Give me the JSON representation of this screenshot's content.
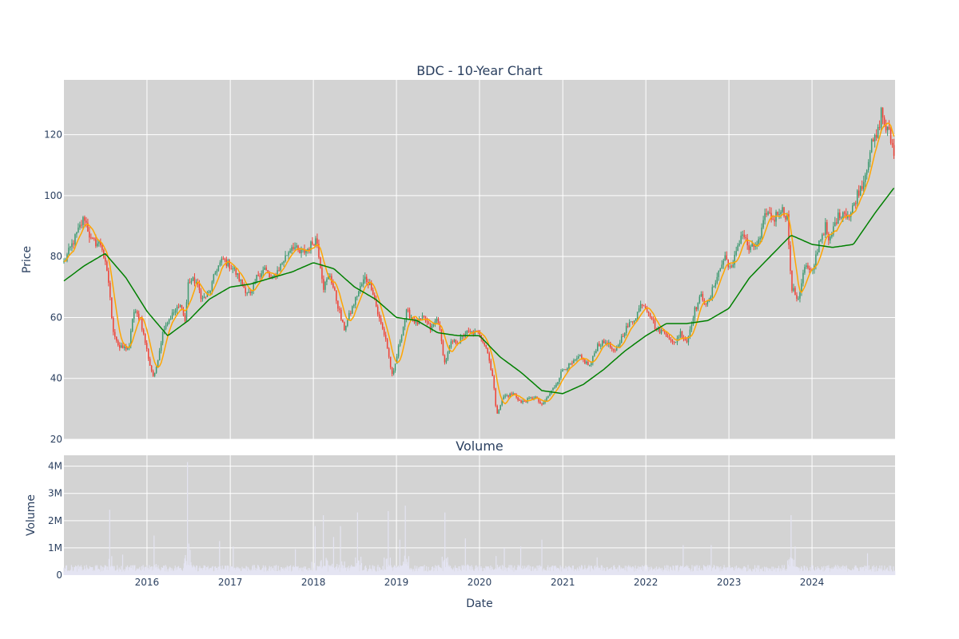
{
  "chart_data": [
    {
      "type": "candlestick",
      "title": "BDC - 10-Year Chart",
      "ylabel": "Price",
      "ylim": [
        20,
        138
      ],
      "yticks": [
        20,
        40,
        60,
        80,
        100,
        120
      ],
      "xlim": [
        "2015-01-01",
        "2024-12-31"
      ],
      "xticks": [
        "2016",
        "2017",
        "2018",
        "2019",
        "2020",
        "2021",
        "2022",
        "2023",
        "2024"
      ],
      "grid": true,
      "colors": {
        "up": "#3d9970",
        "down": "#ef4136",
        "ma_short": "#ffa500",
        "ma_long": "#008000",
        "plot_bg": "#d3d3d3"
      },
      "price_anchors": [
        [
          "2015-01-01",
          78
        ],
        [
          "2015-04-01",
          93
        ],
        [
          "2015-05-01",
          85
        ],
        [
          "2015-06-15",
          84
        ],
        [
          "2015-07-20",
          70
        ],
        [
          "2015-08-01",
          57
        ],
        [
          "2015-09-01",
          50
        ],
        [
          "2015-10-15",
          50
        ],
        [
          "2015-11-01",
          62
        ],
        [
          "2015-12-01",
          60
        ],
        [
          "2016-01-15",
          44
        ],
        [
          "2016-02-01",
          40
        ],
        [
          "2016-03-15",
          57
        ],
        [
          "2016-05-01",
          62
        ],
        [
          "2016-06-01",
          64
        ],
        [
          "2016-06-15",
          58
        ],
        [
          "2016-07-01",
          72
        ],
        [
          "2016-08-01",
          72
        ],
        [
          "2016-09-01",
          66
        ],
        [
          "2016-10-01",
          68
        ],
        [
          "2016-11-01",
          76
        ],
        [
          "2016-12-01",
          79
        ],
        [
          "2017-01-15",
          76
        ],
        [
          "2017-03-01",
          70
        ],
        [
          "2017-04-01",
          67
        ],
        [
          "2017-05-01",
          74
        ],
        [
          "2017-06-01",
          76
        ],
        [
          "2017-07-01",
          72
        ],
        [
          "2017-08-01",
          76
        ],
        [
          "2017-09-01",
          80
        ],
        [
          "2017-10-01",
          84
        ],
        [
          "2017-11-01",
          81
        ],
        [
          "2017-12-01",
          82
        ],
        [
          "2018-01-15",
          86
        ],
        [
          "2018-02-15",
          70
        ],
        [
          "2018-03-15",
          74
        ],
        [
          "2018-04-15",
          65
        ],
        [
          "2018-05-15",
          56
        ],
        [
          "2018-06-15",
          62
        ],
        [
          "2018-07-15",
          68
        ],
        [
          "2018-08-15",
          73
        ],
        [
          "2018-09-15",
          70
        ],
        [
          "2018-10-15",
          60
        ],
        [
          "2018-11-15",
          53
        ],
        [
          "2018-12-15",
          40
        ],
        [
          "2019-01-15",
          52
        ],
        [
          "2019-02-15",
          62
        ],
        [
          "2019-04-01",
          58
        ],
        [
          "2019-05-01",
          60
        ],
        [
          "2019-06-01",
          56
        ],
        [
          "2019-07-01",
          60
        ],
        [
          "2019-08-01",
          45
        ],
        [
          "2019-09-01",
          52
        ],
        [
          "2019-10-01",
          52
        ],
        [
          "2019-11-01",
          55
        ],
        [
          "2019-12-01",
          55
        ],
        [
          "2020-01-01",
          55
        ],
        [
          "2020-02-01",
          50
        ],
        [
          "2020-03-01",
          40
        ],
        [
          "2020-03-15",
          28
        ],
        [
          "2020-04-15",
          34
        ],
        [
          "2020-06-01",
          35
        ],
        [
          "2020-07-01",
          32
        ],
        [
          "2020-09-01",
          34
        ],
        [
          "2020-10-01",
          31
        ],
        [
          "2020-12-01",
          38
        ],
        [
          "2021-01-01",
          43
        ],
        [
          "2021-02-15",
          45
        ],
        [
          "2021-03-15",
          47
        ],
        [
          "2021-05-01",
          44
        ],
        [
          "2021-06-01",
          51
        ],
        [
          "2021-07-15",
          52
        ],
        [
          "2021-08-15",
          48
        ],
        [
          "2021-10-01",
          56
        ],
        [
          "2021-11-15",
          60
        ],
        [
          "2021-12-15",
          65
        ],
        [
          "2022-01-15",
          62
        ],
        [
          "2022-02-15",
          56
        ],
        [
          "2022-04-01",
          55
        ],
        [
          "2022-05-01",
          51
        ],
        [
          "2022-06-01",
          55
        ],
        [
          "2022-07-01",
          52
        ],
        [
          "2022-08-01",
          62
        ],
        [
          "2022-09-01",
          67
        ],
        [
          "2022-10-01",
          64
        ],
        [
          "2022-11-01",
          72
        ],
        [
          "2022-12-15",
          80
        ],
        [
          "2023-01-15",
          75
        ],
        [
          "2023-02-01",
          82
        ],
        [
          "2023-03-01",
          88
        ],
        [
          "2023-04-01",
          82
        ],
        [
          "2023-05-15",
          85
        ],
        [
          "2023-06-15",
          95
        ],
        [
          "2023-07-15",
          92
        ],
        [
          "2023-08-15",
          96
        ],
        [
          "2023-09-15",
          93
        ],
        [
          "2023-10-01",
          70
        ],
        [
          "2023-11-01",
          66
        ],
        [
          "2023-12-01",
          77
        ],
        [
          "2024-01-01",
          74
        ],
        [
          "2024-02-01",
          85
        ],
        [
          "2024-03-01",
          90
        ],
        [
          "2024-03-15",
          84
        ],
        [
          "2024-04-15",
          92
        ],
        [
          "2024-05-15",
          95
        ],
        [
          "2024-06-15",
          93
        ],
        [
          "2024-07-15",
          100
        ],
        [
          "2024-08-15",
          105
        ],
        [
          "2024-09-15",
          116
        ],
        [
          "2024-10-15",
          120
        ],
        [
          "2024-11-01",
          128
        ],
        [
          "2024-11-15",
          123
        ],
        [
          "2024-12-01",
          121
        ],
        [
          "2024-12-31",
          113
        ]
      ],
      "ma_long_anchors": [
        [
          "2015-01-01",
          72
        ],
        [
          "2015-04-01",
          77
        ],
        [
          "2015-07-01",
          81
        ],
        [
          "2015-10-01",
          73
        ],
        [
          "2016-01-01",
          62
        ],
        [
          "2016-04-01",
          54
        ],
        [
          "2016-07-01",
          59
        ],
        [
          "2016-10-01",
          66
        ],
        [
          "2017-01-01",
          70
        ],
        [
          "2017-04-01",
          71
        ],
        [
          "2017-07-01",
          73
        ],
        [
          "2017-10-01",
          75
        ],
        [
          "2018-01-01",
          78
        ],
        [
          "2018-04-01",
          76
        ],
        [
          "2018-07-01",
          70
        ],
        [
          "2018-10-01",
          66
        ],
        [
          "2019-01-01",
          60
        ],
        [
          "2019-04-01",
          59
        ],
        [
          "2019-07-01",
          55
        ],
        [
          "2019-10-01",
          54
        ],
        [
          "2020-01-01",
          54
        ],
        [
          "2020-04-01",
          47
        ],
        [
          "2020-07-01",
          42
        ],
        [
          "2020-10-01",
          36
        ],
        [
          "2021-01-01",
          35
        ],
        [
          "2021-04-01",
          38
        ],
        [
          "2021-07-01",
          43
        ],
        [
          "2021-10-01",
          49
        ],
        [
          "2022-01-01",
          54
        ],
        [
          "2022-04-01",
          58
        ],
        [
          "2022-07-01",
          58
        ],
        [
          "2022-10-01",
          59
        ],
        [
          "2023-01-01",
          63
        ],
        [
          "2023-04-01",
          73
        ],
        [
          "2023-07-01",
          80
        ],
        [
          "2023-10-01",
          87
        ],
        [
          "2024-01-01",
          84
        ],
        [
          "2024-04-01",
          83
        ],
        [
          "2024-07-01",
          84
        ],
        [
          "2024-10-01",
          94
        ],
        [
          "2024-12-31",
          103
        ]
      ]
    },
    {
      "type": "bar",
      "title": "Volume",
      "xlabel": "Date",
      "ylabel": "Volume",
      "ylim": [
        0,
        4400000
      ],
      "yticks": [
        0,
        1000000,
        2000000,
        3000000,
        4000000
      ],
      "ytick_labels": [
        "0",
        "1M",
        "2M",
        "3M",
        "4M"
      ],
      "xticks": [
        "2016",
        "2017",
        "2018",
        "2019",
        "2020",
        "2021",
        "2022",
        "2023",
        "2024"
      ],
      "grid": true,
      "colors": {
        "bar": "#e4e4f2",
        "plot_bg": "#d3d3d3"
      },
      "volume_baseline": 250000,
      "volume_spikes": [
        [
          "2015-07-20",
          2400000
        ],
        [
          "2015-09-15",
          750000
        ],
        [
          "2016-02-01",
          1450000
        ],
        [
          "2016-06-27",
          4150000
        ],
        [
          "2016-11-15",
          1250000
        ],
        [
          "2017-01-15",
          1050000
        ],
        [
          "2017-10-15",
          950000
        ],
        [
          "2018-01-10",
          1800000
        ],
        [
          "2018-02-15",
          2200000
        ],
        [
          "2018-04-01",
          1400000
        ],
        [
          "2018-05-01",
          1800000
        ],
        [
          "2018-07-15",
          2300000
        ],
        [
          "2018-11-25",
          2350000
        ],
        [
          "2019-01-15",
          1300000
        ],
        [
          "2019-02-10",
          2550000
        ],
        [
          "2019-08-01",
          2300000
        ],
        [
          "2019-11-01",
          1350000
        ],
        [
          "2020-03-15",
          700000
        ],
        [
          "2020-04-20",
          1000000
        ],
        [
          "2020-07-01",
          1050000
        ],
        [
          "2020-10-01",
          1300000
        ],
        [
          "2021-06-01",
          650000
        ],
        [
          "2022-06-15",
          1100000
        ],
        [
          "2022-10-15",
          1100000
        ],
        [
          "2023-10-01",
          2200000
        ],
        [
          "2023-10-20",
          1050000
        ],
        [
          "2024-09-01",
          800000
        ]
      ]
    }
  ]
}
